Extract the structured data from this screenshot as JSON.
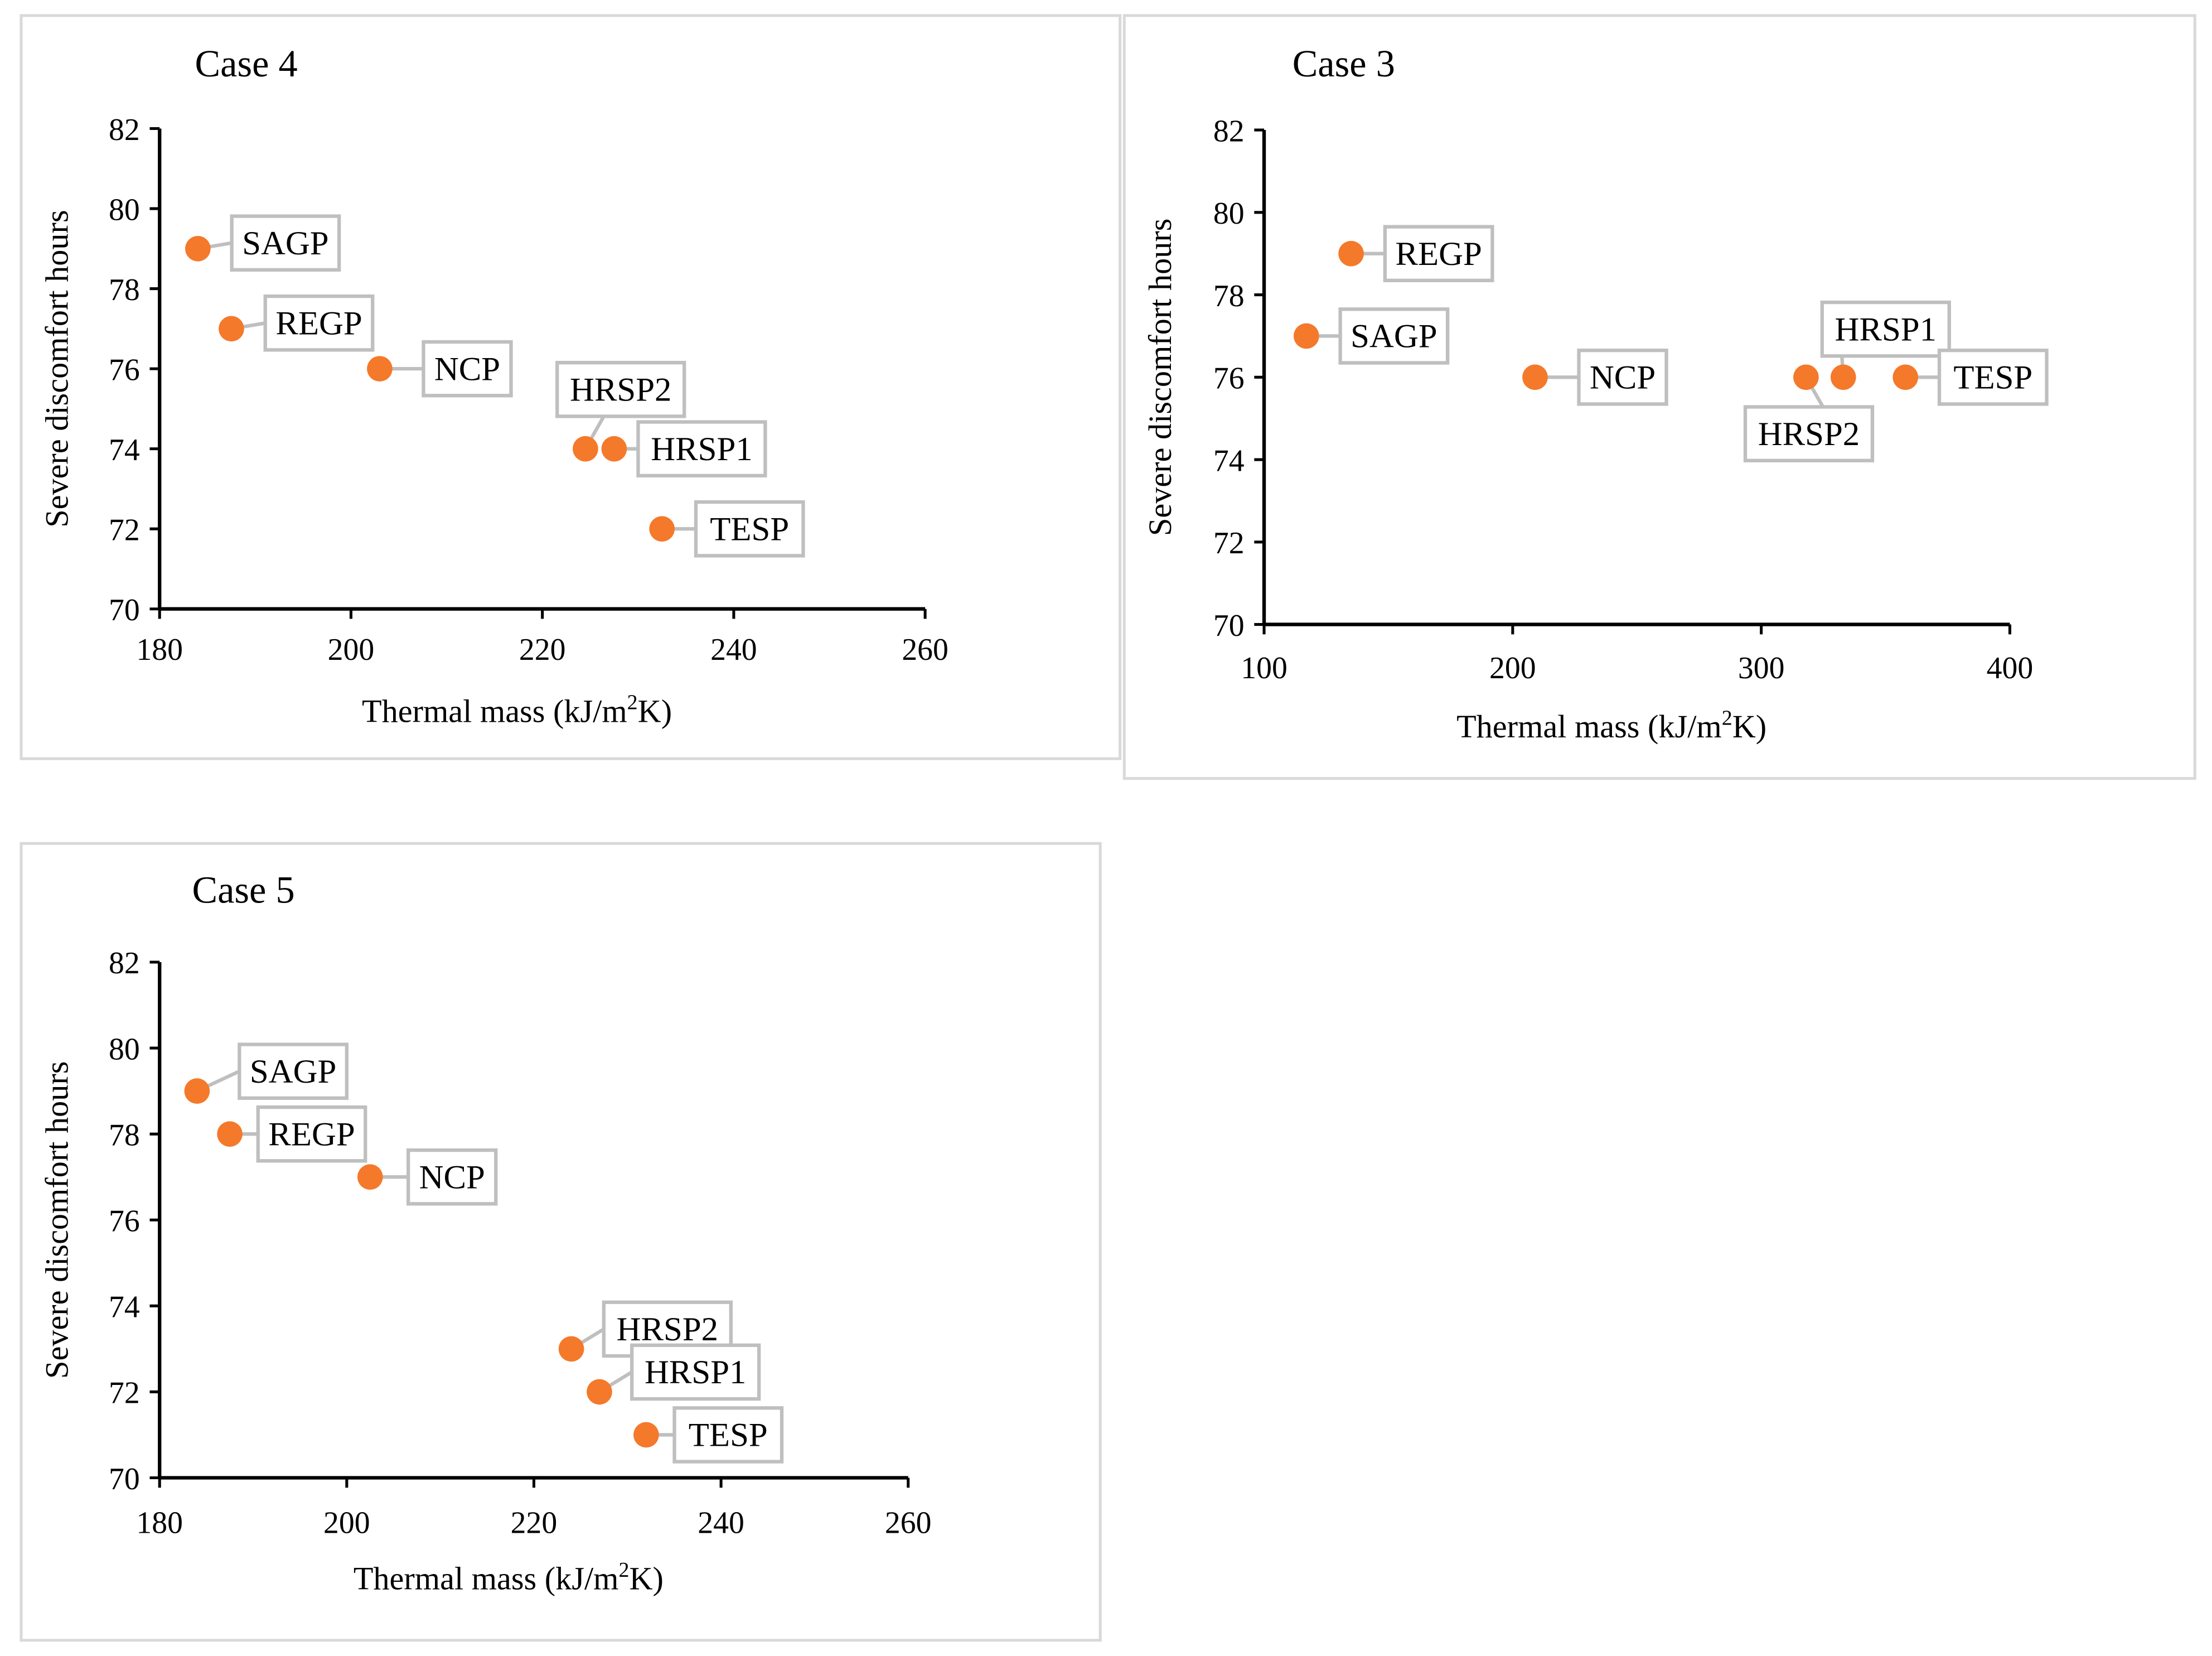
{
  "colors": {
    "marker": "#f4792a",
    "callout_border": "#bfbfbf",
    "axis": "#000000",
    "frame": "#d9d9d9"
  },
  "chart_data": [
    {
      "type": "scatter",
      "title": "Case 4",
      "xlabel_main": "Thermal mass (kJ/m",
      "xlabel_sup": "2",
      "xlabel_tail": "K)",
      "ylabel": "Severe discomfort hours",
      "xlim": [
        180,
        260
      ],
      "ylim": [
        70,
        82
      ],
      "xticks": [
        180,
        200,
        220,
        240,
        260
      ],
      "yticks": [
        70,
        72,
        74,
        76,
        78,
        80,
        82
      ],
      "xtick_labels": [
        "180",
        "200",
        "220",
        "240",
        "260"
      ],
      "ytick_labels": [
        "70",
        "72",
        "74",
        "76",
        "78",
        "80",
        "82"
      ],
      "points": [
        {
          "label": "SAGP",
          "x": 184,
          "y": 79,
          "placement": "upper-right"
        },
        {
          "label": "REGP",
          "x": 187.5,
          "y": 77,
          "placement": "upper-right"
        },
        {
          "label": "NCP",
          "x": 203,
          "y": 76,
          "placement": "right"
        },
        {
          "label": "HRSP2",
          "x": 224.5,
          "y": 74,
          "placement": "above"
        },
        {
          "label": "HRSP1",
          "x": 227.5,
          "y": 74,
          "placement": "right"
        },
        {
          "label": "TESP",
          "x": 232.5,
          "y": 72,
          "placement": "right"
        }
      ]
    },
    {
      "type": "scatter",
      "title": "Case 3",
      "xlabel_main": "Thermal mass (kJ/m",
      "xlabel_sup": "2",
      "xlabel_tail": "K)",
      "ylabel": "Severe discomfort hours",
      "xlim": [
        100,
        400
      ],
      "ylim": [
        70,
        82
      ],
      "xticks": [
        100,
        200,
        300,
        400
      ],
      "yticks": [
        70,
        72,
        74,
        76,
        78,
        80,
        82
      ],
      "xtick_labels": [
        "100",
        "200",
        "300",
        "400"
      ],
      "ytick_labels": [
        "70",
        "72",
        "74",
        "76",
        "78",
        "80",
        "82"
      ],
      "points": [
        {
          "label": "REGP",
          "x": 135,
          "y": 79,
          "placement": "right"
        },
        {
          "label": "SAGP",
          "x": 117,
          "y": 77,
          "placement": "right"
        },
        {
          "label": "NCP",
          "x": 209,
          "y": 76,
          "placement": "right"
        },
        {
          "label": "HRSP2",
          "x": 318,
          "y": 76,
          "placement": "lower-left"
        },
        {
          "label": "HRSP1",
          "x": 333,
          "y": 76,
          "placement": "upper-right"
        },
        {
          "label": "TESP",
          "x": 358,
          "y": 76,
          "placement": "right"
        }
      ]
    },
    {
      "type": "scatter",
      "title": "Case 5",
      "xlabel_main": "Thermal mass (kJ/m",
      "xlabel_sup": "2",
      "xlabel_tail": "K)",
      "ylabel": "Severe discomfort hours",
      "xlim": [
        180,
        260
      ],
      "ylim": [
        70,
        82
      ],
      "xticks": [
        180,
        200,
        220,
        240,
        260
      ],
      "yticks": [
        70,
        72,
        74,
        76,
        78,
        80,
        82
      ],
      "xtick_labels": [
        "180",
        "200",
        "220",
        "240",
        "260"
      ],
      "ytick_labels": [
        "70",
        "72",
        "74",
        "76",
        "78",
        "80",
        "82"
      ],
      "points": [
        {
          "label": "SAGP",
          "x": 184,
          "y": 79,
          "placement": "upper-right"
        },
        {
          "label": "REGP",
          "x": 187.5,
          "y": 78,
          "placement": "right"
        },
        {
          "label": "NCP",
          "x": 202.5,
          "y": 77,
          "placement": "right"
        },
        {
          "label": "HRSP2",
          "x": 224,
          "y": 73,
          "placement": "upper-right"
        },
        {
          "label": "HRSP1",
          "x": 227,
          "y": 72,
          "placement": "upper-right"
        },
        {
          "label": "TESP",
          "x": 232,
          "y": 71,
          "placement": "right"
        }
      ]
    }
  ]
}
